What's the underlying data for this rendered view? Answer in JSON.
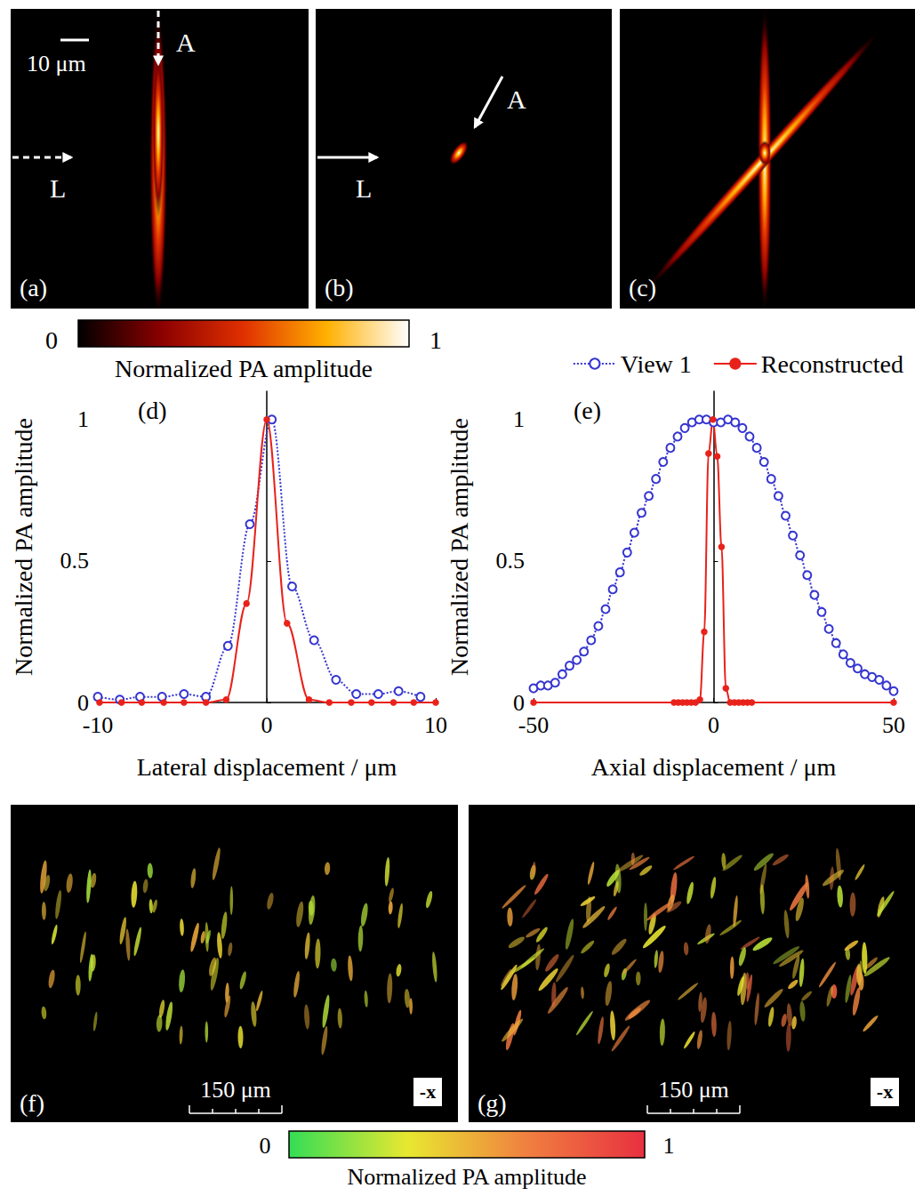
{
  "images_top": [
    {
      "label": "(a)",
      "scale_bar": "10 μm",
      "arrows": [
        "A",
        "L"
      ],
      "arrow_style": "dashed"
    },
    {
      "label": "(b)",
      "arrows": [
        "A",
        "L"
      ],
      "arrow_style": "solid"
    },
    {
      "label": "(c)"
    }
  ],
  "colorbar_top": {
    "range": [
      0,
      1
    ],
    "ticks": [
      0,
      1
    ],
    "label": "Normalized PA amplitude",
    "colors": [
      "#000000",
      "#8b0000",
      "#e03000",
      "#ffb000",
      "#ffffff"
    ]
  },
  "chart_data": [
    {
      "type": "line",
      "title": "(d)",
      "x_label": "Lateral displacement / μm",
      "y_label": "Normalized PA amplitude",
      "xlim": [
        -10,
        10
      ],
      "xticks": [
        -10,
        0,
        10
      ],
      "ylim": [
        0,
        1.1
      ],
      "yticks": [
        0,
        0.5,
        1
      ],
      "grid": false,
      "series": [
        {
          "name": "View 1",
          "color": "#3535d0",
          "marker": "open-circle",
          "line_style": "dotted",
          "x": [
            -10,
            -8.7,
            -7.5,
            -6.2,
            -4.9,
            -3.6,
            -2.3,
            -1.0,
            0.3,
            1.5,
            2.8,
            4.1,
            5.3,
            6.6,
            7.8,
            9.1
          ],
          "values": [
            0.02,
            0.01,
            0.02,
            0.02,
            0.03,
            0.02,
            0.2,
            0.63,
            1.0,
            0.41,
            0.22,
            0.08,
            0.03,
            0.03,
            0.04,
            0.02
          ]
        },
        {
          "name": "Reconstructed",
          "color": "#e8221b",
          "marker": "filled-circle",
          "line_style": "solid",
          "x": [
            -9.9,
            -8.6,
            -7.4,
            -6.1,
            -4.9,
            -3.6,
            -2.4,
            -1.2,
            0.0,
            1.2,
            2.5,
            3.7,
            5.0,
            6.2,
            7.5,
            8.7,
            10
          ],
          "values": [
            0,
            0,
            0,
            0,
            0,
            0,
            0.01,
            0.35,
            1.0,
            0.28,
            0.01,
            0,
            0,
            0,
            0,
            0,
            0
          ]
        }
      ]
    },
    {
      "type": "line",
      "title": "(e)",
      "x_label": "Axial displacement / μm",
      "y_label": "Normalized PA amplitude",
      "xlim": [
        -50,
        50
      ],
      "xticks": [
        -50,
        0,
        50
      ],
      "ylim": [
        0,
        1.1
      ],
      "yticks": [
        0,
        0.5,
        1
      ],
      "grid": false,
      "legend": "top-right",
      "series": [
        {
          "name": "View 1",
          "color": "#3535d0",
          "marker": "open-circle",
          "line_style": "dotted",
          "x": [
            -50,
            -48,
            -46,
            -44,
            -42,
            -40,
            -38,
            -36,
            -34,
            -32,
            -30,
            -28,
            -26,
            -24,
            -22,
            -20,
            -18,
            -16,
            -14,
            -12,
            -10,
            -8,
            -6,
            -4,
            -2,
            0,
            2,
            4,
            6,
            8,
            10,
            12,
            14,
            16,
            18,
            20,
            22,
            24,
            26,
            28,
            30,
            32,
            34,
            36,
            38,
            40,
            42,
            44,
            46,
            48,
            50
          ],
          "values": [
            0.05,
            0.06,
            0.06,
            0.07,
            0.1,
            0.13,
            0.15,
            0.18,
            0.22,
            0.27,
            0.33,
            0.4,
            0.46,
            0.53,
            0.6,
            0.67,
            0.73,
            0.79,
            0.85,
            0.9,
            0.94,
            0.97,
            0.99,
            1.0,
            1.0,
            0.99,
            0.99,
            1.0,
            0.99,
            0.97,
            0.94,
            0.9,
            0.85,
            0.79,
            0.73,
            0.66,
            0.59,
            0.52,
            0.45,
            0.38,
            0.32,
            0.26,
            0.21,
            0.17,
            0.14,
            0.12,
            0.1,
            0.09,
            0.08,
            0.06,
            0.04
          ]
        },
        {
          "name": "Reconstructed",
          "color": "#e8221b",
          "marker": "filled-circle",
          "line_style": "solid",
          "x": [
            -50,
            -11,
            -9.8,
            -8.6,
            -7.4,
            -6.2,
            -5.0,
            -3.8,
            -2.6,
            -1.4,
            -0.2,
            1.0,
            2.2,
            3.4,
            4.6,
            5.8,
            7.0,
            8.2,
            9.4,
            10.6,
            50
          ],
          "values": [
            0,
            0,
            0,
            0,
            0,
            0,
            0,
            0.01,
            0.25,
            0.88,
            1.0,
            0.87,
            0.55,
            0.05,
            0,
            0,
            0,
            0,
            0,
            0,
            0
          ]
        }
      ]
    }
  ],
  "images_bottom": [
    {
      "label": "(f)",
      "scale_bar": "150 μm",
      "view": "-x"
    },
    {
      "label": "(g)",
      "scale_bar": "150 μm",
      "view": "-x"
    }
  ],
  "colorbar_bottom": {
    "range": [
      0,
      1
    ],
    "ticks": [
      0,
      1
    ],
    "label": "Normalized PA amplitude",
    "colors": [
      "#33dd55",
      "#e8e830",
      "#f08040",
      "#e83040"
    ]
  }
}
